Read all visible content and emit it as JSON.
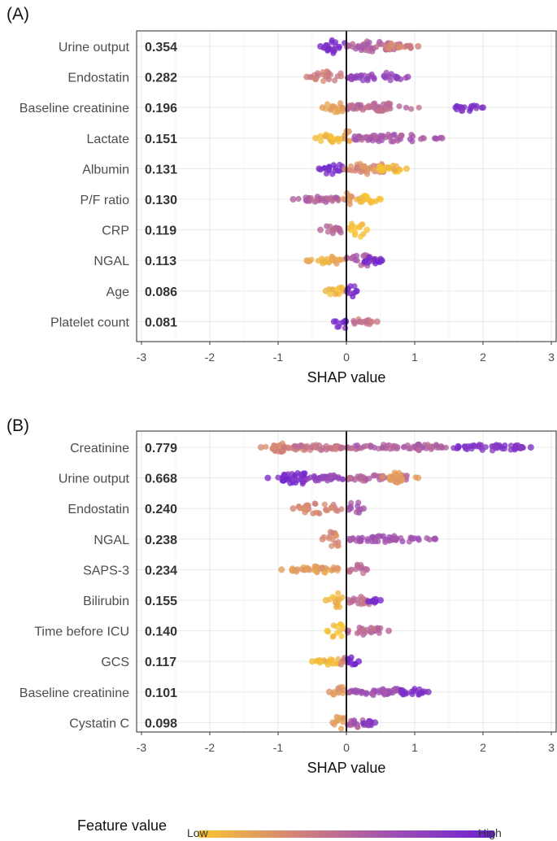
{
  "chart_data": [
    {
      "type": "beeswarm",
      "panel": "(A)",
      "xlabel": "SHAP value",
      "xlim": [
        -3,
        3
      ],
      "xticks": [
        "-3",
        "-2",
        "-1",
        "0",
        "1",
        "2",
        "3"
      ],
      "features": [
        {
          "name": "Urine output",
          "mean_abs_shap": "0.354",
          "min": -0.38,
          "max": 1.05,
          "segments": [
            {
              "from": -0.38,
              "to": 0.2,
              "c": 0.9,
              "core": [
                -0.35,
                -0.15
              ],
              "thick": 0.95
            },
            {
              "from": 0.0,
              "to": 1.05,
              "c": 0.55,
              "core": [
                0.0,
                0.7
              ],
              "thick": 0.75
            },
            {
              "from": 0.5,
              "to": 1.05,
              "c": 0.35,
              "core": [
                0.55,
                0.95
              ],
              "thick": 0.5
            }
          ]
        },
        {
          "name": "Endostatin",
          "mean_abs_shap": "0.282",
          "min": -0.58,
          "max": 0.9,
          "segments": [
            {
              "from": -0.58,
              "to": 0.0,
              "c": 0.35,
              "core": [
                -0.45,
                -0.05
              ],
              "thick": 0.8
            },
            {
              "from": 0.0,
              "to": 0.9,
              "c": 0.72,
              "core": [
                0.05,
                0.8
              ],
              "thick": 0.6
            }
          ]
        },
        {
          "name": "Baseline creatinine",
          "mean_abs_shap": "0.196",
          "min": -0.35,
          "max": 2.0,
          "segments": [
            {
              "from": -0.35,
              "to": 0.05,
              "c": 0.2,
              "core": [
                -0.3,
                -0.05
              ],
              "thick": 0.75
            },
            {
              "from": 0.0,
              "to": 1.2,
              "c": 0.5,
              "core": [
                0.0,
                0.7
              ],
              "thick": 0.6
            },
            {
              "from": 1.55,
              "to": 2.0,
              "c": 0.85,
              "core": [
                1.6,
                1.95
              ],
              "thick": 0.5
            }
          ]
        },
        {
          "name": "Lactate",
          "mean_abs_shap": "0.151",
          "min": -0.45,
          "max": 1.4,
          "segments": [
            {
              "from": -0.45,
              "to": 0.0,
              "c": 0.05,
              "core": [
                -0.4,
                -0.05
              ],
              "thick": 0.65
            },
            {
              "from": -0.05,
              "to": 0.08,
              "c": 0.2,
              "core": [
                -0.03,
                0.05
              ],
              "thick": 1.0
            },
            {
              "from": 0.05,
              "to": 1.4,
              "c": 0.6,
              "core": [
                0.1,
                1.0
              ],
              "thick": 0.5
            }
          ]
        },
        {
          "name": "Albumin",
          "mean_abs_shap": "0.131",
          "min": -0.4,
          "max": 0.88,
          "segments": [
            {
              "from": -0.4,
              "to": 0.0,
              "c": 0.92,
              "core": [
                -0.35,
                -0.05
              ],
              "thick": 0.75
            },
            {
              "from": -0.05,
              "to": 0.88,
              "c": 0.3,
              "core": [
                0.0,
                0.6
              ],
              "thick": 0.75
            },
            {
              "from": 0.4,
              "to": 0.88,
              "c": 0.05,
              "core": [
                0.45,
                0.8
              ],
              "thick": 0.55
            }
          ]
        },
        {
          "name": "P/F ratio",
          "mean_abs_shap": "0.130",
          "min": -0.78,
          "max": 0.5,
          "segments": [
            {
              "from": -0.78,
              "to": 0.0,
              "c": 0.55,
              "core": [
                -0.6,
                -0.1
              ],
              "thick": 0.4
            },
            {
              "from": -0.05,
              "to": 0.1,
              "c": 0.25,
              "core": [
                -0.03,
                0.08
              ],
              "thick": 1.0
            },
            {
              "from": 0.1,
              "to": 0.5,
              "c": 0.03,
              "core": [
                0.12,
                0.45
              ],
              "thick": 0.5
            }
          ]
        },
        {
          "name": "CRP",
          "mean_abs_shap": "0.119",
          "min": -0.38,
          "max": 0.3,
          "segments": [
            {
              "from": -0.38,
              "to": -0.02,
              "c": 0.5,
              "core": [
                -0.3,
                -0.05
              ],
              "thick": 0.6
            },
            {
              "from": 0.0,
              "to": 0.3,
              "c": 0.02,
              "core": [
                0.02,
                0.25
              ],
              "thick": 1.0
            }
          ]
        },
        {
          "name": "NGAL",
          "mean_abs_shap": "0.113",
          "min": -0.58,
          "max": 0.52,
          "segments": [
            {
              "from": -0.58,
              "to": 0.0,
              "c": 0.15,
              "core": [
                -0.45,
                -0.05
              ],
              "thick": 0.55
            },
            {
              "from": -0.05,
              "to": 0.52,
              "c": 0.55,
              "core": [
                0.0,
                0.4
              ],
              "thick": 0.75
            },
            {
              "from": 0.2,
              "to": 0.52,
              "c": 0.92,
              "core": [
                0.25,
                0.5
              ],
              "thick": 0.5
            }
          ]
        },
        {
          "name": "Age",
          "mean_abs_shap": "0.086",
          "min": -0.3,
          "max": 0.15,
          "segments": [
            {
              "from": -0.3,
              "to": 0.0,
              "c": 0.08,
              "core": [
                -0.25,
                -0.03
              ],
              "thick": 0.75
            },
            {
              "from": 0.0,
              "to": 0.15,
              "c": 0.92,
              "core": [
                0.02,
                0.12
              ],
              "thick": 1.0
            }
          ]
        },
        {
          "name": "Platelet count",
          "mean_abs_shap": "0.081",
          "min": -0.18,
          "max": 0.45,
          "segments": [
            {
              "from": -0.18,
              "to": 0.05,
              "c": 0.92,
              "core": [
                -0.15,
                0.02
              ],
              "thick": 1.0
            },
            {
              "from": 0.05,
              "to": 0.45,
              "c": 0.4,
              "core": [
                0.08,
                0.38
              ],
              "thick": 0.45
            }
          ]
        }
      ]
    },
    {
      "type": "beeswarm",
      "panel": "(B)",
      "xlabel": "SHAP value",
      "xlim": [
        -3,
        3
      ],
      "xticks": [
        "-3",
        "-2",
        "-1",
        "0",
        "1",
        "2",
        "3"
      ],
      "features": [
        {
          "name": "Creatinine",
          "mean_abs_shap": "0.779",
          "min": -1.25,
          "max": 2.7,
          "segments": [
            {
              "from": -1.25,
              "to": 0.0,
              "c": 0.3,
              "core": [
                -1.1,
                -0.9
              ],
              "thick": 0.75
            },
            {
              "from": -1.0,
              "to": 0.0,
              "c": 0.42,
              "core": [
                -0.9,
                -0.05
              ],
              "thick": 0.4
            },
            {
              "from": 0.0,
              "to": 1.6,
              "c": 0.55,
              "core": [
                0.0,
                1.4
              ],
              "thick": 0.45
            },
            {
              "from": 1.5,
              "to": 2.7,
              "c": 0.85,
              "core": [
                1.6,
                2.6
              ],
              "thick": 0.45
            }
          ]
        },
        {
          "name": "Urine output",
          "mean_abs_shap": "0.668",
          "min": -1.15,
          "max": 1.05,
          "segments": [
            {
              "from": -1.15,
              "to": 0.0,
              "c": 0.88,
              "core": [
                -0.95,
                -0.6
              ],
              "thick": 0.8
            },
            {
              "from": -0.6,
              "to": 0.0,
              "c": 0.72,
              "core": [
                -0.55,
                -0.05
              ],
              "thick": 0.4
            },
            {
              "from": 0.0,
              "to": 1.05,
              "c": 0.5,
              "core": [
                0.0,
                0.9
              ],
              "thick": 0.5
            },
            {
              "from": 0.5,
              "to": 1.05,
              "c": 0.2,
              "core": [
                0.6,
                0.85
              ],
              "thick": 0.75
            }
          ]
        },
        {
          "name": "Endostatin",
          "mean_abs_shap": "0.240",
          "min": -0.78,
          "max": 0.25,
          "segments": [
            {
              "from": -0.78,
              "to": 0.0,
              "c": 0.32,
              "core": [
                -0.7,
                -0.1
              ],
              "thick": 0.7
            },
            {
              "from": 0.0,
              "to": 0.25,
              "c": 0.62,
              "core": [
                0.02,
                0.22
              ],
              "thick": 0.9
            }
          ]
        },
        {
          "name": "NGAL",
          "mean_abs_shap": "0.238",
          "min": -0.35,
          "max": 1.3,
          "segments": [
            {
              "from": -0.35,
              "to": 0.0,
              "c": 0.3,
              "core": [
                -0.3,
                -0.1
              ],
              "thick": 1.0
            },
            {
              "from": 0.0,
              "to": 1.3,
              "c": 0.65,
              "core": [
                0.02,
                1.0
              ],
              "thick": 0.45
            }
          ]
        },
        {
          "name": "SAPS-3",
          "mean_abs_shap": "0.234",
          "min": -0.95,
          "max": 0.3,
          "segments": [
            {
              "from": -0.95,
              "to": 0.0,
              "c": 0.2,
              "core": [
                -0.8,
                -0.05
              ],
              "thick": 0.55
            },
            {
              "from": 0.0,
              "to": 0.3,
              "c": 0.5,
              "core": [
                0.02,
                0.25
              ],
              "thick": 0.85
            }
          ]
        },
        {
          "name": "Bilirubin",
          "mean_abs_shap": "0.155",
          "min": -0.3,
          "max": 0.5,
          "segments": [
            {
              "from": -0.3,
              "to": 0.0,
              "c": 0.08,
              "core": [
                -0.25,
                -0.05
              ],
              "thick": 1.0
            },
            {
              "from": 0.0,
              "to": 0.5,
              "c": 0.45,
              "core": [
                0.02,
                0.35
              ],
              "thick": 0.6
            },
            {
              "from": 0.3,
              "to": 0.5,
              "c": 0.92,
              "core": [
                0.32,
                0.45
              ],
              "thick": 0.5
            }
          ]
        },
        {
          "name": "Time before ICU",
          "mean_abs_shap": "0.140",
          "min": -0.28,
          "max": 0.62,
          "segments": [
            {
              "from": -0.28,
              "to": 0.0,
              "c": 0.03,
              "core": [
                -0.2,
                -0.05
              ],
              "thick": 1.0
            },
            {
              "from": 0.0,
              "to": 0.62,
              "c": 0.5,
              "core": [
                0.02,
                0.5
              ],
              "thick": 0.55
            }
          ]
        },
        {
          "name": "GCS",
          "mean_abs_shap": "0.117",
          "min": -0.5,
          "max": 0.18,
          "segments": [
            {
              "from": -0.5,
              "to": -0.05,
              "c": 0.05,
              "core": [
                -0.4,
                -0.1
              ],
              "thick": 0.5
            },
            {
              "from": -0.1,
              "to": 0.0,
              "c": 0.35,
              "core": [
                -0.08,
                -0.02
              ],
              "thick": 0.6
            },
            {
              "from": 0.0,
              "to": 0.18,
              "c": 0.95,
              "core": [
                0.02,
                0.15
              ],
              "thick": 1.25
            }
          ]
        },
        {
          "name": "Baseline creatinine",
          "mean_abs_shap": "0.101",
          "min": -0.25,
          "max": 1.2,
          "segments": [
            {
              "from": -0.25,
              "to": 0.0,
              "c": 0.25,
              "core": [
                -0.2,
                -0.05
              ],
              "thick": 0.85
            },
            {
              "from": 0.0,
              "to": 1.2,
              "c": 0.65,
              "core": [
                0.02,
                0.8
              ],
              "thick": 0.45
            },
            {
              "from": 0.7,
              "to": 1.2,
              "c": 0.85,
              "core": [
                0.75,
                1.1
              ],
              "thick": 0.45
            }
          ]
        },
        {
          "name": "Cystatin C",
          "mean_abs_shap": "0.098",
          "min": -0.2,
          "max": 0.42,
          "segments": [
            {
              "from": -0.2,
              "to": 0.0,
              "c": 0.22,
              "core": [
                -0.15,
                -0.03
              ],
              "thick": 1.0
            },
            {
              "from": 0.0,
              "to": 0.42,
              "c": 0.6,
              "core": [
                0.02,
                0.35
              ],
              "thick": 0.7
            },
            {
              "from": 0.2,
              "to": 0.42,
              "c": 0.85,
              "core": [
                0.25,
                0.4
              ],
              "thick": 0.45
            }
          ]
        }
      ]
    }
  ],
  "legend": {
    "title": "Feature value",
    "low_label": "Low",
    "high_label": "High",
    "gradient": [
      "#f9c62f",
      "#d4837a",
      "#9e4fb3",
      "#6a1fd4"
    ]
  },
  "colors": {
    "grid": "#ebebeb",
    "frame": "#4d4d4d",
    "zero_line": "#000000"
  }
}
